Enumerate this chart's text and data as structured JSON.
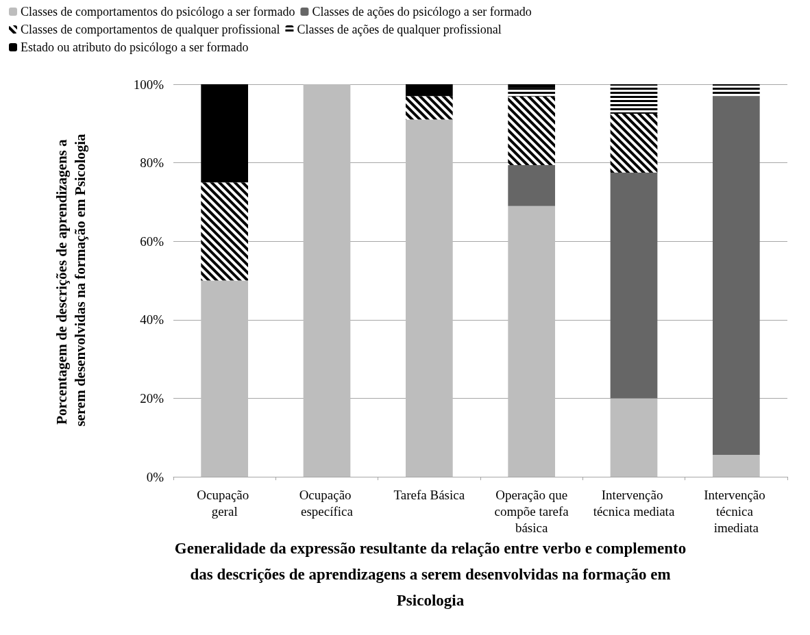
{
  "chart_data": {
    "type": "bar",
    "stacked": true,
    "xlabel": "Generalidade da expressão resultante da relação entre verbo e complemento das descrições de aprendizagens a serem desenvolvidas na formação em Psicologia",
    "ylabel": "Porcentagem de descrições de aprendizagens a serem desenvolvidas na formação em Psicologia",
    "categories": [
      "Ocupação geral",
      "Ocupação específica",
      "Tarefa Básica",
      "Operação que compõe tarefa básica",
      "Intervenção técnica mediata",
      "Intervenção técnica imediata"
    ],
    "series": [
      {
        "name": "Classes de comportamentos do psicólogo a ser formado",
        "color": "#bdbdbd",
        "values": [
          50,
          100,
          91,
          69,
          20,
          5.6
        ]
      },
      {
        "name": "Classes de ações do psicólogo a ser formado",
        "color": "#666666",
        "values": [
          0,
          0,
          0,
          10.4,
          57.5,
          91.4
        ]
      },
      {
        "name": "Classes de comportamentos de qualquer profissional",
        "color": "#000000",
        "values": [
          25,
          0,
          6,
          17.5,
          15,
          0
        ]
      },
      {
        "name": "Classes de ações de qualquer profissional",
        "color": "#000000",
        "values": [
          0,
          0,
          0,
          2.2,
          7.5,
          3
        ]
      },
      {
        "name": "Estado ou atributo do psicólogo a ser formado",
        "color": "#000000",
        "values": [
          25,
          0,
          3,
          0.9,
          0,
          0
        ]
      }
    ],
    "ylim": [
      0,
      100
    ],
    "yticks": [
      {
        "value": 0,
        "label": "0%"
      },
      {
        "value": 20,
        "label": "20%"
      },
      {
        "value": 40,
        "label": "40%"
      },
      {
        "value": 60,
        "label": "60%"
      },
      {
        "value": 80,
        "label": "80%"
      },
      {
        "value": 100,
        "label": "100%"
      }
    ],
    "grid": "y",
    "legend": "top left"
  }
}
